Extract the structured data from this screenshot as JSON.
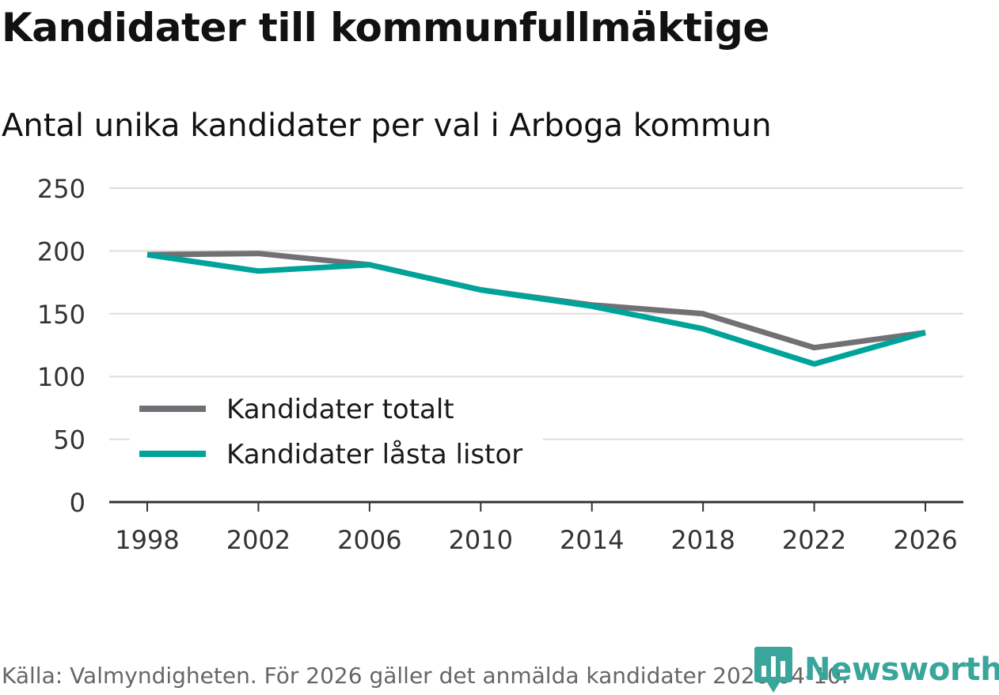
{
  "chart_data": {
    "type": "line",
    "title": "Kandidater till kommunfullmäktige",
    "subtitle": "Antal unika kandidater per val i Arboga kommun",
    "x": [
      "1998",
      "2002",
      "2006",
      "2010",
      "2014",
      "2018",
      "2022",
      "2026"
    ],
    "yticks": [
      "0",
      "50",
      "100",
      "150",
      "200",
      "250"
    ],
    "ylim": [
      0,
      250
    ],
    "xlabel": "",
    "ylabel": "",
    "grid": true,
    "legend_position": "bottom-left",
    "series": [
      {
        "name": "Kandidater totalt",
        "color": "#717075",
        "values": [
          197,
          198,
          189,
          169,
          157,
          150,
          123,
          135
        ]
      },
      {
        "name": "Kandidater låsta listor",
        "color": "#00a39a",
        "values": [
          197,
          184,
          189,
          169,
          156,
          138,
          110,
          135
        ]
      }
    ]
  },
  "source": "Källa: Valmyndigheten. För 2026 gäller det anmälda kandidater 2026-04-10.",
  "brand": {
    "name": "Newsworthy",
    "icon": "bar-chart-icon",
    "color": "#3aa59a"
  }
}
